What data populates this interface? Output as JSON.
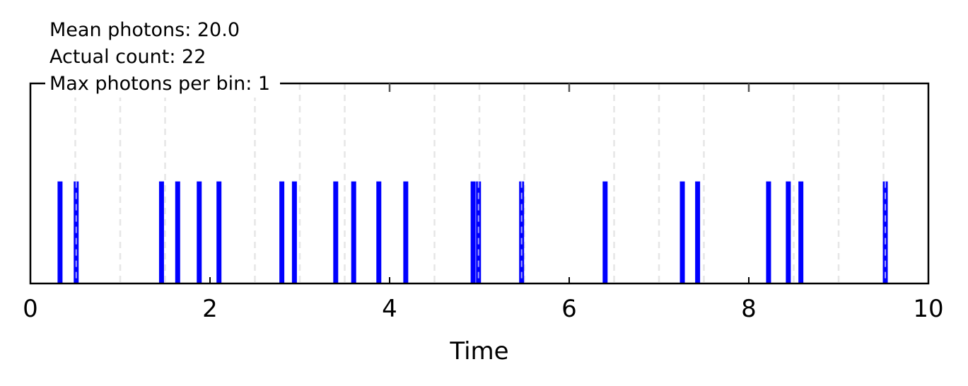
{
  "chart_data": {
    "type": "event",
    "xlabel": "Time",
    "xlim": [
      0,
      10
    ],
    "ylim": [
      0,
      1
    ],
    "x_ticks": [
      0,
      2,
      4,
      6,
      8,
      10
    ],
    "x_tick_labels": [
      "0",
      "2",
      "4",
      "6",
      "8",
      "10"
    ],
    "minor_grid_x": [
      0.5,
      1,
      1.5,
      2.5,
      3,
      3.5,
      4.5,
      5,
      5.5,
      6.5,
      7,
      7.5,
      8.5,
      9,
      9.5
    ],
    "major_grid_x": [
      2,
      4,
      6,
      8
    ],
    "grid": true,
    "event_color": "#0000ff",
    "event_height": 0.51,
    "events": [
      0.33,
      0.51,
      1.46,
      1.64,
      1.88,
      2.1,
      2.8,
      2.94,
      3.4,
      3.6,
      3.88,
      4.18,
      4.93,
      4.99,
      5.47,
      6.4,
      7.26,
      7.43,
      8.22,
      8.44,
      8.58,
      9.52
    ],
    "annotations": [
      "Mean photons: 20.0",
      "Actual count: 22",
      "Max photons per bin: 1"
    ]
  }
}
